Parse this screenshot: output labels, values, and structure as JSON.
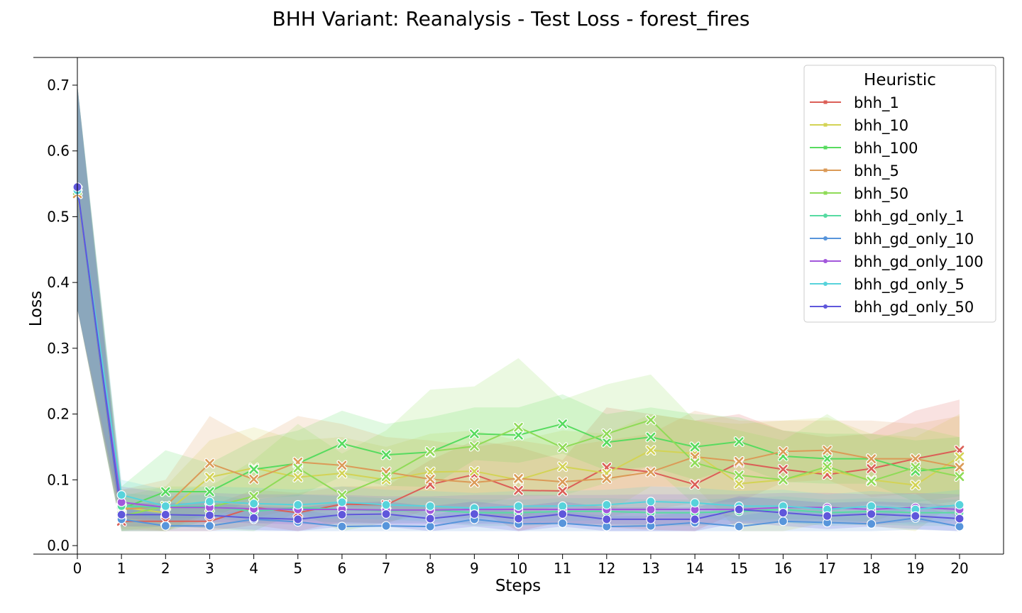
{
  "chart_data": {
    "type": "line",
    "title": "BHH Variant: Reanalysis - Test Loss - forest_fires",
    "xlabel": "Steps",
    "ylabel": "Loss",
    "xlim": [
      0,
      20
    ],
    "ylim": [
      0.0,
      0.7
    ],
    "x": [
      0,
      1,
      2,
      3,
      4,
      5,
      6,
      7,
      8,
      9,
      10,
      11,
      12,
      13,
      14,
      15,
      16,
      17,
      18,
      19,
      20
    ],
    "y_ticks": [
      "0.0",
      "0.1",
      "0.2",
      "0.3",
      "0.4",
      "0.5",
      "0.6",
      "0.7"
    ],
    "x_ticks": [
      "0",
      "1",
      "2",
      "3",
      "4",
      "5",
      "6",
      "7",
      "8",
      "9",
      "10",
      "11",
      "12",
      "13",
      "14",
      "15",
      "16",
      "17",
      "18",
      "19",
      "20"
    ],
    "legend": {
      "title": "Heuristic",
      "placement": "top-right"
    },
    "grid": false,
    "series": [
      {
        "name": "bhh_1",
        "color": "#db5f57",
        "marker": "x",
        "values": [
          0.54,
          0.037,
          0.037,
          0.037,
          0.058,
          0.05,
          0.063,
          0.062,
          0.093,
          0.108,
          0.084,
          0.083,
          0.119,
          0.112,
          0.093,
          0.126,
          0.116,
          0.108,
          0.117,
          0.132,
          0.145
        ],
        "band_hi": [
          0.7,
          0.065,
          0.062,
          0.06,
          0.085,
          0.08,
          0.09,
          0.09,
          0.13,
          0.16,
          0.15,
          0.13,
          0.21,
          0.2,
          0.19,
          0.2,
          0.175,
          0.165,
          0.17,
          0.205,
          0.222
        ]
      },
      {
        "name": "bhh_10",
        "color": "#d3d355",
        "marker": "x",
        "values": [
          0.535,
          0.058,
          0.05,
          0.104,
          0.118,
          0.104,
          0.11,
          0.1,
          0.112,
          0.113,
          0.1,
          0.12,
          0.11,
          0.145,
          0.14,
          0.094,
          0.1,
          0.115,
          0.1,
          0.092,
          0.135
        ],
        "band_hi": [
          0.7,
          0.085,
          0.09,
          0.16,
          0.18,
          0.16,
          0.165,
          0.15,
          0.17,
          0.175,
          0.16,
          0.175,
          0.17,
          0.2,
          0.19,
          0.185,
          0.19,
          0.195,
          0.17,
          0.165,
          0.2
        ]
      },
      {
        "name": "bhh_100",
        "color": "#57db5f",
        "marker": "x",
        "values": [
          0.54,
          0.056,
          0.082,
          0.082,
          0.116,
          0.125,
          0.155,
          0.138,
          0.142,
          0.17,
          0.168,
          0.185,
          0.157,
          0.165,
          0.15,
          0.158,
          0.136,
          0.132,
          0.132,
          0.113,
          0.12
        ],
        "band_hi": [
          0.7,
          0.09,
          0.145,
          0.125,
          0.16,
          0.175,
          0.205,
          0.185,
          0.195,
          0.21,
          0.21,
          0.23,
          0.2,
          0.21,
          0.2,
          0.195,
          0.175,
          0.17,
          0.17,
          0.16,
          0.165
        ]
      },
      {
        "name": "bhh_5",
        "color": "#db9a57",
        "marker": "x",
        "values": [
          0.535,
          0.055,
          0.06,
          0.125,
          0.101,
          0.127,
          0.122,
          0.112,
          0.101,
          0.096,
          0.102,
          0.097,
          0.102,
          0.112,
          0.135,
          0.128,
          0.143,
          0.145,
          0.132,
          0.132,
          0.119
        ],
        "band_hi": [
          0.7,
          0.085,
          0.1,
          0.197,
          0.16,
          0.197,
          0.185,
          0.165,
          0.16,
          0.15,
          0.16,
          0.15,
          0.16,
          0.17,
          0.205,
          0.19,
          0.19,
          0.19,
          0.19,
          0.185,
          0.197
        ]
      },
      {
        "name": "bhh_50",
        "color": "#8fdb57",
        "marker": "x",
        "values": [
          0.54,
          0.045,
          0.06,
          0.058,
          0.075,
          0.118,
          0.077,
          0.105,
          0.143,
          0.151,
          0.18,
          0.149,
          0.17,
          0.191,
          0.126,
          0.107,
          0.1,
          0.12,
          0.098,
          0.119,
          0.105
        ],
        "band_hi": [
          0.7,
          0.075,
          0.09,
          0.09,
          0.13,
          0.185,
          0.14,
          0.175,
          0.237,
          0.242,
          0.285,
          0.222,
          0.245,
          0.26,
          0.19,
          0.175,
          0.16,
          0.2,
          0.16,
          0.18,
          0.165
        ]
      },
      {
        "name": "bhh_gd_only_1",
        "color": "#57dba2",
        "marker": "o",
        "values": [
          0.54,
          0.06,
          0.058,
          0.06,
          0.052,
          0.058,
          0.055,
          0.053,
          0.054,
          0.05,
          0.05,
          0.052,
          0.052,
          0.05,
          0.05,
          0.052,
          0.055,
          0.05,
          0.052,
          0.05,
          0.05
        ],
        "band_hi": [
          0.7,
          0.08,
          0.075,
          0.077,
          0.07,
          0.078,
          0.075,
          0.072,
          0.073,
          0.07,
          0.07,
          0.072,
          0.072,
          0.07,
          0.07,
          0.072,
          0.075,
          0.07,
          0.072,
          0.07,
          0.07
        ]
      },
      {
        "name": "bhh_gd_only_10",
        "color": "#5795db",
        "marker": "o",
        "values": [
          0.54,
          0.04,
          0.03,
          0.03,
          0.04,
          0.036,
          0.029,
          0.03,
          0.029,
          0.04,
          0.033,
          0.034,
          0.029,
          0.03,
          0.035,
          0.029,
          0.037,
          0.035,
          0.033,
          0.042,
          0.029
        ],
        "band_hi": [
          0.7,
          0.06,
          0.045,
          0.045,
          0.058,
          0.055,
          0.045,
          0.045,
          0.045,
          0.06,
          0.05,
          0.052,
          0.045,
          0.045,
          0.052,
          0.045,
          0.055,
          0.052,
          0.05,
          0.06,
          0.045
        ]
      },
      {
        "name": "bhh_gd_only_100",
        "color": "#a257db",
        "marker": "o",
        "values": [
          0.54,
          0.066,
          0.058,
          0.058,
          0.056,
          0.055,
          0.055,
          0.054,
          0.054,
          0.055,
          0.055,
          0.055,
          0.055,
          0.055,
          0.055,
          0.055,
          0.058,
          0.058,
          0.055,
          0.058,
          0.055
        ],
        "band_hi": [
          0.7,
          0.09,
          0.08,
          0.08,
          0.078,
          0.078,
          0.077,
          0.075,
          0.075,
          0.077,
          0.077,
          0.077,
          0.077,
          0.078,
          0.078,
          0.078,
          0.08,
          0.08,
          0.078,
          0.08,
          0.078
        ]
      },
      {
        "name": "bhh_gd_only_5",
        "color": "#57d3db",
        "marker": "o",
        "values": [
          0.54,
          0.077,
          0.06,
          0.067,
          0.064,
          0.062,
          0.066,
          0.062,
          0.06,
          0.057,
          0.06,
          0.06,
          0.062,
          0.067,
          0.065,
          0.06,
          0.06,
          0.055,
          0.06,
          0.055,
          0.062
        ],
        "band_hi": [
          0.7,
          0.1,
          0.085,
          0.09,
          0.088,
          0.085,
          0.09,
          0.085,
          0.083,
          0.08,
          0.083,
          0.083,
          0.085,
          0.09,
          0.088,
          0.083,
          0.085,
          0.078,
          0.083,
          0.078,
          0.085
        ]
      },
      {
        "name": "bhh_gd_only_50",
        "color": "#5f57db",
        "marker": "o",
        "values": [
          0.545,
          0.047,
          0.047,
          0.046,
          0.042,
          0.04,
          0.047,
          0.048,
          0.041,
          0.048,
          0.041,
          0.048,
          0.04,
          0.04,
          0.04,
          0.055,
          0.05,
          0.045,
          0.048,
          0.045,
          0.041
        ],
        "band_hi": [
          0.7,
          0.065,
          0.065,
          0.065,
          0.06,
          0.058,
          0.065,
          0.067,
          0.06,
          0.067,
          0.06,
          0.067,
          0.058,
          0.058,
          0.058,
          0.075,
          0.07,
          0.065,
          0.067,
          0.065,
          0.06
        ]
      }
    ]
  }
}
